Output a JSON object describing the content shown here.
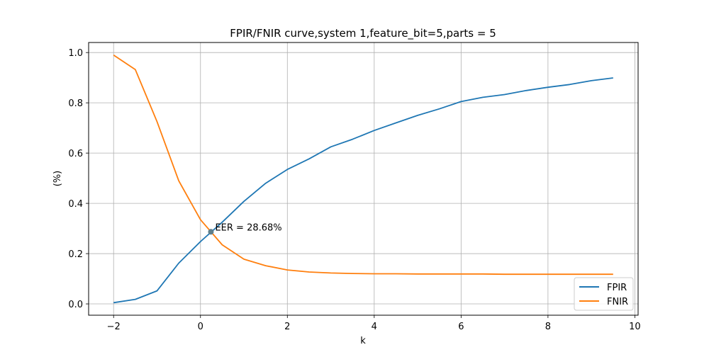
{
  "chart_data": {
    "type": "line",
    "title": "FPIR/FNIR curve,system 1,feature_bit=5,parts = 5",
    "xlabel": "k",
    "ylabel": "(%)",
    "xlim": [
      -2.575,
      10.075
    ],
    "ylim": [
      -0.045,
      1.04
    ],
    "xticks": [
      -2,
      0,
      2,
      4,
      6,
      8,
      10
    ],
    "xtick_labels": [
      "−2",
      "0",
      "2",
      "4",
      "6",
      "8",
      "10"
    ],
    "yticks": [
      0.0,
      0.2,
      0.4,
      0.6,
      0.8,
      1.0
    ],
    "ytick_labels": [
      "0.0",
      "0.2",
      "0.4",
      "0.6",
      "0.8",
      "1.0"
    ],
    "grid": true,
    "legend": "lower-right",
    "x": [
      -2,
      -1.5,
      -1,
      -0.5,
      0,
      0.5,
      1,
      1.5,
      2,
      2.5,
      3,
      3.5,
      4,
      4.5,
      5,
      5.5,
      6,
      6.5,
      7,
      7.5,
      8,
      8.5,
      9,
      9.5
    ],
    "series": [
      {
        "name": "FPIR",
        "color": "#1f77b4",
        "values": [
          0.005,
          0.018,
          0.052,
          0.162,
          0.248,
          0.325,
          0.408,
          0.48,
          0.535,
          0.577,
          0.625,
          0.655,
          0.69,
          0.72,
          0.75,
          0.776,
          0.805,
          0.822,
          0.833,
          0.849,
          0.862,
          0.873,
          0.888,
          0.899
        ]
      },
      {
        "name": "FNIR",
        "color": "#ff7f0e",
        "values": [
          0.99,
          0.932,
          0.725,
          0.49,
          0.335,
          0.235,
          0.178,
          0.152,
          0.135,
          0.127,
          0.123,
          0.121,
          0.12,
          0.12,
          0.119,
          0.119,
          0.119,
          0.119,
          0.118,
          0.118,
          0.118,
          0.118,
          0.118,
          0.118
        ]
      }
    ],
    "eer_point": {
      "x": 0.24,
      "y": 0.2868,
      "color": "#5f7f8b"
    },
    "annotation": "EER = 28.68%"
  }
}
